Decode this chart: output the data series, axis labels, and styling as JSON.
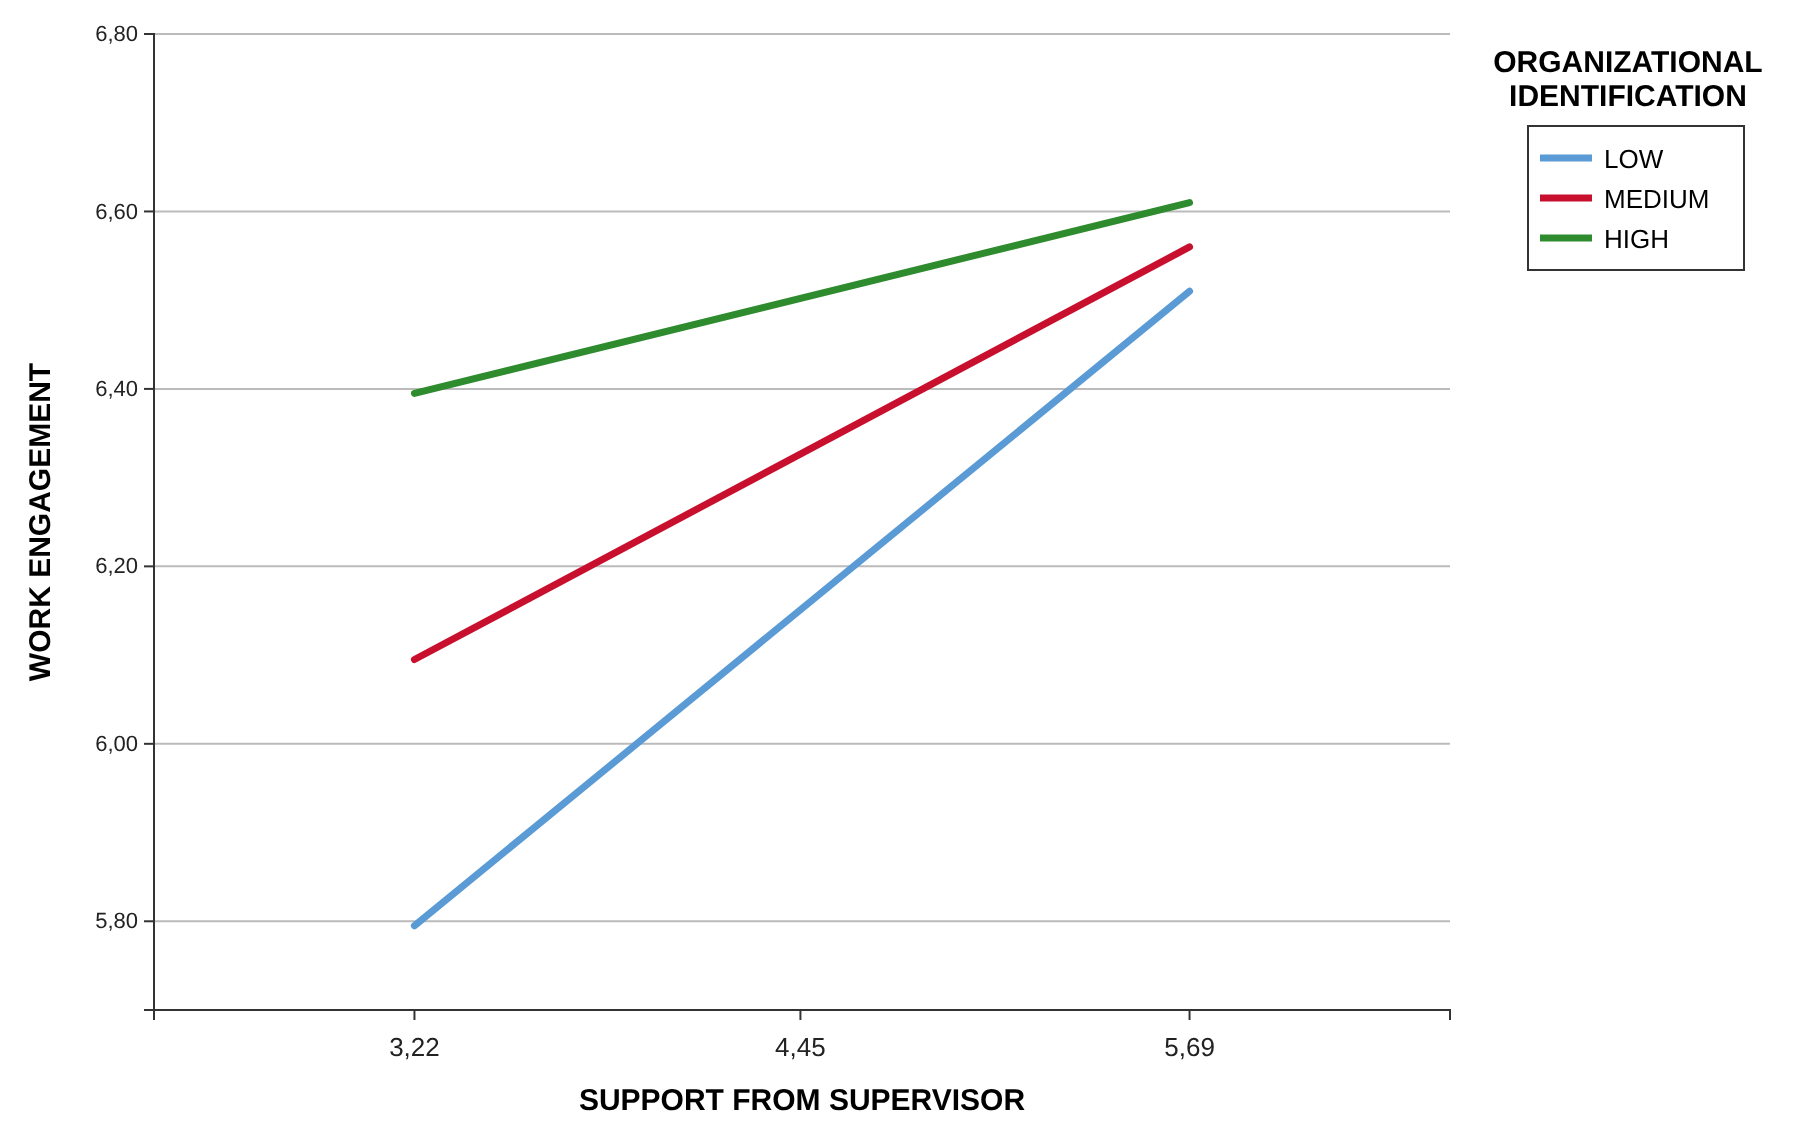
{
  "chart_data": {
    "type": "line",
    "xlabel": "SUPPORT FROM SUPERVISOR",
    "ylabel": "WORK ENGAGEMENT",
    "legend_title": "ORGANIZATIONAL IDENTIFICATION",
    "x": [
      3.22,
      5.69
    ],
    "xlim": [
      2.39,
      6.52
    ],
    "xticks": [
      {
        "value": 3.22,
        "label": "3,22"
      },
      {
        "value": 4.45,
        "label": "4,45"
      },
      {
        "value": 5.69,
        "label": "5,69"
      }
    ],
    "ylim": [
      5.7,
      6.8
    ],
    "yticks": [
      {
        "value": 5.8,
        "label": "5,80"
      },
      {
        "value": 6.0,
        "label": "6,00"
      },
      {
        "value": 6.2,
        "label": "6,20"
      },
      {
        "value": 6.4,
        "label": "6,40"
      },
      {
        "value": 6.6,
        "label": "6,60"
      },
      {
        "value": 6.8,
        "label": "6,80"
      }
    ],
    "grid": "y",
    "legend": "top right",
    "marker": "none",
    "line_style": "solid",
    "series": [
      {
        "name": "LOW",
        "color": "#5b9bd5",
        "values": [
          5.795,
          6.51
        ]
      },
      {
        "name": "MEDIUM",
        "color": "#c8102e",
        "values": [
          6.095,
          6.56
        ]
      },
      {
        "name": "HIGH",
        "color": "#2e8b2e",
        "values": [
          6.395,
          6.61
        ]
      }
    ]
  }
}
